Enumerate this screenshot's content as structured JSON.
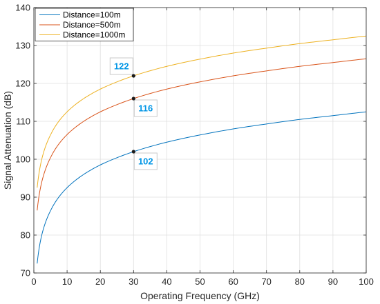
{
  "chart_data": {
    "type": "line",
    "xlabel": "Operating Frequency (GHz)",
    "ylabel": "Signal Attenuation (dB)",
    "xlim": [
      0,
      100
    ],
    "ylim": [
      70,
      140
    ],
    "x_ticks": [
      0,
      10,
      20,
      30,
      40,
      50,
      60,
      70,
      80,
      90,
      100
    ],
    "y_ticks": [
      70,
      80,
      90,
      100,
      110,
      120,
      130,
      140
    ],
    "grid": true,
    "legend_position": "top-left",
    "series": [
      {
        "name": "Distance=100m",
        "color": "#0072BD",
        "x": [
          1,
          2,
          3,
          5,
          7,
          10,
          15,
          20,
          25,
          30,
          40,
          50,
          60,
          70,
          80,
          90,
          100
        ],
        "y": [
          72.5,
          78.5,
          82.0,
          86.4,
          89.4,
          92.5,
          96.0,
          98.5,
          100.4,
          102.0,
          104.5,
          106.4,
          108.0,
          109.3,
          110.5,
          111.5,
          112.5
        ]
      },
      {
        "name": "Distance=500m",
        "color": "#D95319",
        "x": [
          1,
          2,
          3,
          5,
          7,
          10,
          15,
          20,
          25,
          30,
          40,
          50,
          60,
          70,
          80,
          90,
          100
        ],
        "y": [
          86.5,
          92.5,
          96.0,
          100.4,
          103.4,
          106.5,
          110.0,
          112.5,
          114.4,
          116.0,
          118.5,
          120.4,
          122.0,
          123.3,
          124.5,
          125.5,
          126.5
        ]
      },
      {
        "name": "Distance=1000m",
        "color": "#EDB120",
        "x": [
          1,
          2,
          3,
          5,
          7,
          10,
          15,
          20,
          25,
          30,
          40,
          50,
          60,
          70,
          80,
          90,
          100
        ],
        "y": [
          92.5,
          98.5,
          102.0,
          106.4,
          109.4,
          112.5,
          116.0,
          118.5,
          120.4,
          122.0,
          124.5,
          126.4,
          128.0,
          129.3,
          130.5,
          131.5,
          132.5
        ]
      }
    ],
    "annotations": [
      {
        "x": 30,
        "y": 122,
        "label": "122",
        "placement": "upper-left"
      },
      {
        "x": 30,
        "y": 116,
        "label": "116",
        "placement": "lower-right"
      },
      {
        "x": 30,
        "y": 102,
        "label": "102",
        "placement": "lower-right"
      }
    ]
  }
}
